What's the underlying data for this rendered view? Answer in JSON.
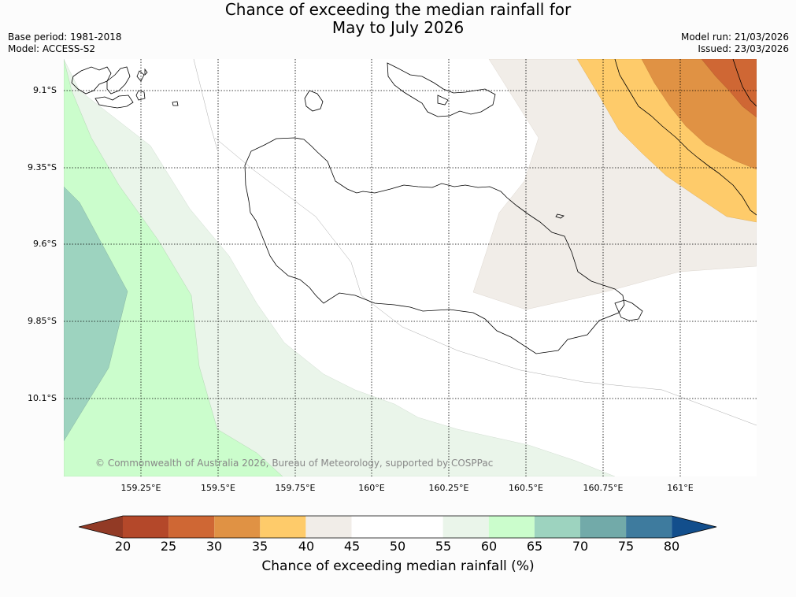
{
  "title": {
    "line1": "Chance of exceeding the median rainfall for",
    "line2": "May to July 2026"
  },
  "meta_left": {
    "base_period": "Base period: 1981-2018",
    "model": "Model: ACCESS-S2"
  },
  "meta_right": {
    "model_run": "Model run: 21/03/2026",
    "issued": "Issued: 23/03/2026"
  },
  "map": {
    "latitude_labels": [
      "9.1°S",
      "9.35°S",
      "9.6°S",
      "9.85°S",
      "10.1°S"
    ],
    "longitude_labels": [
      "159.25°E",
      "159.5°E",
      "159.75°E",
      "160°E",
      "160.25°E",
      "160.5°E",
      "160.75°E",
      "161°E"
    ],
    "copyright": "© Commonwealth of Australia 2026, Bureau of Meteorology, supported by COSPPac",
    "colors": {
      "c20_25": "#b4482a",
      "c30_35": "#e09244",
      "c35_40": "#fecb6a",
      "c25_30": "#cf6734",
      "c40_45": "#f1ede8",
      "c55_60": "#eaf5ea",
      "c60_65": "#cbfdcc",
      "c65_70": "#9dd3bf"
    }
  },
  "colorbar": {
    "ticks": [
      "20",
      "25",
      "30",
      "35",
      "40",
      "45",
      "50",
      "55",
      "60",
      "65",
      "70",
      "75",
      "80"
    ],
    "colors": [
      "#b4482a",
      "#cf6734",
      "#e09244",
      "#fecb6a",
      "#f1ede8",
      "#ffffff",
      "#ffffff",
      "#eaf5ea",
      "#cbfdcc",
      "#9dd3bf",
      "#72aaa9",
      "#3e7b9e"
    ],
    "under_color": "#923a25",
    "over_color": "#124e8c",
    "label": "Chance of exceeding median rainfall (%)"
  }
}
